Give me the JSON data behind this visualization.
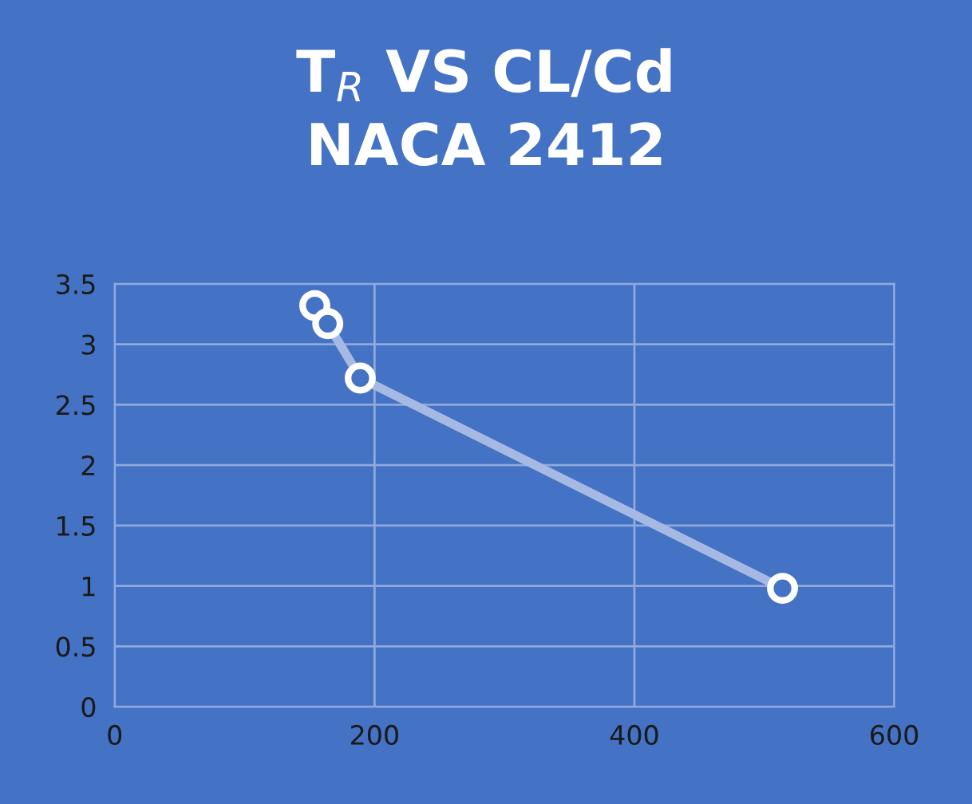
{
  "chart_data": {
    "type": "line",
    "title": "T$_{R}$ VS CL/Cd\nNACA 2412",
    "series": [
      {
        "color": "#a6b9e3",
        "x": [
          154,
          164,
          189,
          514
        ],
        "values": [
          3.32,
          3.17,
          2.72,
          0.98
        ]
      }
    ],
    "xlim": [
      0,
      600
    ],
    "xticks": [
      0,
      200,
      400,
      600
    ],
    "ylim": [
      0,
      3.5
    ],
    "yticks": [
      0,
      0.5,
      1,
      1.5,
      2,
      2.5,
      3,
      3.5
    ],
    "grid": true,
    "marker": "circle",
    "line_style": "solid"
  }
}
